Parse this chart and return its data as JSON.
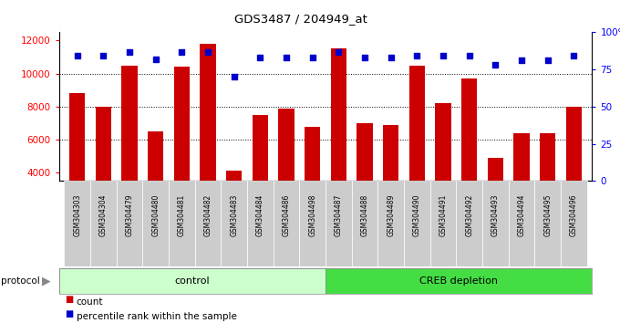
{
  "title": "GDS3487 / 204949_at",
  "samples": [
    "GSM304303",
    "GSM304304",
    "GSM304479",
    "GSM304480",
    "GSM304481",
    "GSM304482",
    "GSM304483",
    "GSM304484",
    "GSM304486",
    "GSM304498",
    "GSM304487",
    "GSM304488",
    "GSM304489",
    "GSM304490",
    "GSM304491",
    "GSM304492",
    "GSM304493",
    "GSM304494",
    "GSM304495",
    "GSM304496"
  ],
  "counts": [
    8800,
    8000,
    10500,
    6500,
    10400,
    11800,
    4100,
    7500,
    7900,
    6800,
    11500,
    7000,
    6900,
    10500,
    8200,
    9700,
    4900,
    6400,
    6400,
    8000
  ],
  "percentile_ranks": [
    84,
    84,
    87,
    82,
    87,
    87,
    70,
    83,
    83,
    83,
    87,
    83,
    83,
    84,
    84,
    84,
    78,
    81,
    81,
    84
  ],
  "bar_color": "#cc0000",
  "dot_color": "#0000cc",
  "control_bg": "#ccffcc",
  "creb_bg": "#44dd44",
  "xlabel_bg": "#cccccc",
  "plot_bg": "#ffffff",
  "ylim_left": [
    3500,
    12500
  ],
  "ylim_right": [
    0,
    100
  ],
  "yticks_left": [
    4000,
    6000,
    8000,
    10000,
    12000
  ],
  "yticks_right": [
    0,
    25,
    50,
    75,
    100
  ],
  "grid_values": [
    6000,
    8000,
    10000
  ],
  "bar_width": 0.6
}
